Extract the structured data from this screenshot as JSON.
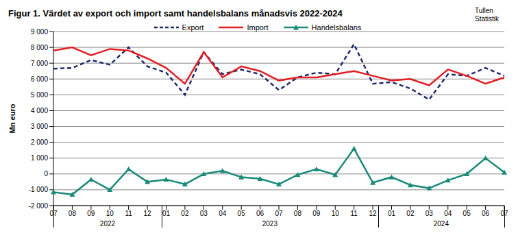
{
  "chart_data": {
    "type": "line",
    "title": "Figur 1. Värdet av export och import samt handelsbalans månadsvis 2022-2024",
    "source": [
      "Tullen",
      "Statistik"
    ],
    "y_label": "Mn euro",
    "categories": [
      "07",
      "08",
      "09",
      "10",
      "11",
      "12",
      "01",
      "02",
      "03",
      "04",
      "05",
      "06",
      "07",
      "08",
      "09",
      "10",
      "11",
      "12",
      "01",
      "02",
      "03",
      "04",
      "05",
      "06",
      "07"
    ],
    "year_groups": [
      {
        "label": "2022",
        "start": 0,
        "count": 6
      },
      {
        "label": "2023",
        "start": 6,
        "count": 12
      },
      {
        "label": "2024",
        "start": 18,
        "count": 7
      }
    ],
    "series": [
      {
        "name": "Export",
        "color": "#1f2a6b",
        "line_style": "dashed",
        "marker": "none",
        "values": [
          6650,
          6700,
          7200,
          6900,
          8000,
          6800,
          6400,
          5000,
          7700,
          6300,
          6600,
          6300,
          5300,
          6100,
          6400,
          6300,
          8200,
          5700,
          5800,
          5400,
          4700,
          6300,
          6200,
          6700,
          6200
        ]
      },
      {
        "name": "Import",
        "color": "#e31e24",
        "line_style": "solid",
        "marker": "none",
        "values": [
          7800,
          8000,
          7500,
          7900,
          7800,
          7300,
          6700,
          5700,
          7700,
          6100,
          6800,
          6500,
          5900,
          6100,
          6100,
          6300,
          6500,
          6200,
          5900,
          6000,
          5600,
          6600,
          6200,
          5700,
          6100
        ]
      },
      {
        "name": "Handelsbalans",
        "color": "#1a8a7a",
        "line_style": "solid",
        "marker": "triangle",
        "values": [
          -1150,
          -1300,
          -350,
          -1000,
          300,
          -500,
          -350,
          -650,
          0,
          200,
          -200,
          -300,
          -650,
          -50,
          300,
          -50,
          1600,
          -550,
          -200,
          -700,
          -900,
          -400,
          0,
          1000,
          100
        ]
      }
    ],
    "ylim": [
      -2000,
      9000
    ],
    "yticks": [
      {
        "value": -2000,
        "label": "-2 000"
      },
      {
        "value": -1000,
        "label": "-1 000"
      },
      0,
      {
        "value": 1000,
        "label": "1 000"
      },
      {
        "value": 2000,
        "label": "2 000"
      },
      {
        "value": 3000,
        "label": "3 000"
      },
      {
        "value": 4000,
        "label": "4 000"
      },
      {
        "value": 5000,
        "label": "5 000"
      },
      {
        "value": 6000,
        "label": "6 000"
      },
      {
        "value": 7000,
        "label": "7 000"
      },
      {
        "value": 8000,
        "label": "8 000"
      },
      {
        "value": 9000,
        "label": "9 000"
      }
    ],
    "grid": true,
    "legend": "top"
  }
}
